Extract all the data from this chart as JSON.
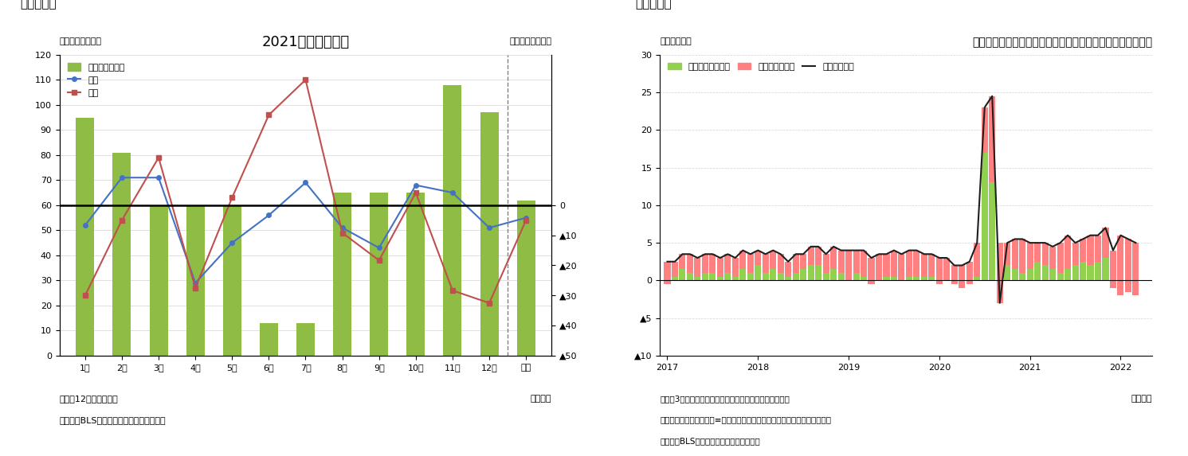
{
  "fig3": {
    "title": "2021年改定の結果",
    "label_left": "（前月差、万人）",
    "label_right": "（改定幅、万人）",
    "label_bottom": "（月次）",
    "note": "（注）12月は未確定値",
    "source": "（資料）BLSよりニッセイ基礎研究所作成",
    "header": "（図表３）",
    "categories": [
      "1月",
      "2月",
      "3月",
      "4月",
      "5月",
      "6月",
      "7月",
      "8月",
      "9月",
      "10月",
      "11月",
      "12月",
      "平均"
    ],
    "bar_values": [
      95,
      81,
      60,
      60,
      60,
      13,
      13,
      65,
      65,
      65,
      108,
      97,
      62
    ],
    "line_now": [
      52,
      71,
      71,
      29,
      45,
      56,
      69,
      51,
      43,
      68,
      65,
      51,
      55
    ],
    "line_prev": [
      24,
      54,
      79,
      27,
      63,
      96,
      110,
      49,
      38,
      65,
      26,
      21,
      54
    ],
    "baseline": 60,
    "bar_color": "#8FBC45",
    "line_now_color": "#4472C4",
    "line_prev_color": "#C0504D",
    "legend_bar": "改定幅（右軸）",
    "legend_now": "今回",
    "legend_prev": "前回"
  },
  "fig4": {
    "header": "（図表４）",
    "title": "民間非農業部門の週当たり賃金伸び率（年率換算、寄与度）",
    "label_left": "（年率、％）",
    "label_bottom": "（月次）",
    "note1": "（注）3カ月後方移動平均後の前月比伸び率（年率換算）",
    "note2": "　　週当たり賃金伸び率≡週当たり労働時間伸び率＋時間当たり賃金伸び率",
    "source": "（資料）BLSよりニッセイ基礎研究所作成",
    "bar_hours_color": "#92D050",
    "bar_hourly_color": "#FF8080",
    "line_color": "#1F1F1F",
    "legend_hours": "週当たり労働時間",
    "legend_hourly": "時間当たり賃金",
    "legend_line": "週当たり賃金",
    "hours_data": [
      -0.5,
      0.5,
      1.5,
      1.0,
      0.5,
      1.0,
      1.0,
      0.5,
      1.0,
      0.5,
      1.5,
      1.0,
      2.0,
      1.0,
      1.5,
      1.0,
      0.5,
      1.0,
      1.5,
      2.0,
      2.0,
      1.0,
      1.5,
      1.0,
      0.0,
      1.0,
      0.5,
      -0.5,
      0.0,
      0.5,
      0.5,
      0.0,
      0.5,
      0.5,
      0.5,
      0.5,
      -0.5,
      0.0,
      -0.5,
      -1.0,
      -0.5,
      0.5,
      17.0,
      13.0,
      5.0,
      2.0,
      1.5,
      1.0,
      1.5,
      2.5,
      2.0,
      1.5,
      1.0,
      1.5,
      2.0,
      2.5,
      2.0,
      2.5,
      3.0,
      -1.0,
      -2.0,
      -1.5,
      -2.0
    ],
    "hourly_data": [
      3.0,
      2.0,
      2.0,
      2.5,
      2.5,
      2.5,
      2.5,
      2.5,
      2.5,
      2.5,
      2.5,
      2.5,
      2.0,
      2.5,
      2.5,
      2.5,
      2.0,
      2.5,
      2.0,
      2.5,
      2.5,
      2.5,
      3.0,
      3.0,
      4.0,
      3.0,
      3.5,
      3.5,
      3.5,
      3.0,
      3.5,
      3.5,
      3.5,
      3.5,
      3.0,
      3.0,
      3.5,
      3.0,
      2.5,
      3.0,
      3.0,
      4.5,
      6.0,
      11.5,
      -8.0,
      3.0,
      4.0,
      4.5,
      3.5,
      2.5,
      3.0,
      3.0,
      4.0,
      4.5,
      3.0,
      3.0,
      4.0,
      3.5,
      4.0,
      5.0,
      8.0,
      7.0,
      7.0
    ],
    "weekly_line": [
      2.5,
      2.5,
      3.5,
      3.5,
      3.0,
      3.5,
      3.5,
      3.0,
      3.5,
      3.0,
      4.0,
      3.5,
      4.0,
      3.5,
      4.0,
      3.5,
      2.5,
      3.5,
      3.5,
      4.5,
      4.5,
      3.5,
      4.5,
      4.0,
      4.0,
      4.0,
      4.0,
      3.0,
      3.5,
      3.5,
      4.0,
      3.5,
      4.0,
      4.0,
      3.5,
      3.5,
      3.0,
      3.0,
      2.0,
      2.0,
      2.5,
      5.0,
      23.0,
      24.5,
      -3.0,
      5.0,
      5.5,
      5.5,
      5.0,
      5.0,
      5.0,
      4.5,
      5.0,
      6.0,
      5.0,
      5.5,
      6.0,
      6.0,
      7.0,
      4.0,
      6.0,
      5.5,
      5.0
    ]
  }
}
